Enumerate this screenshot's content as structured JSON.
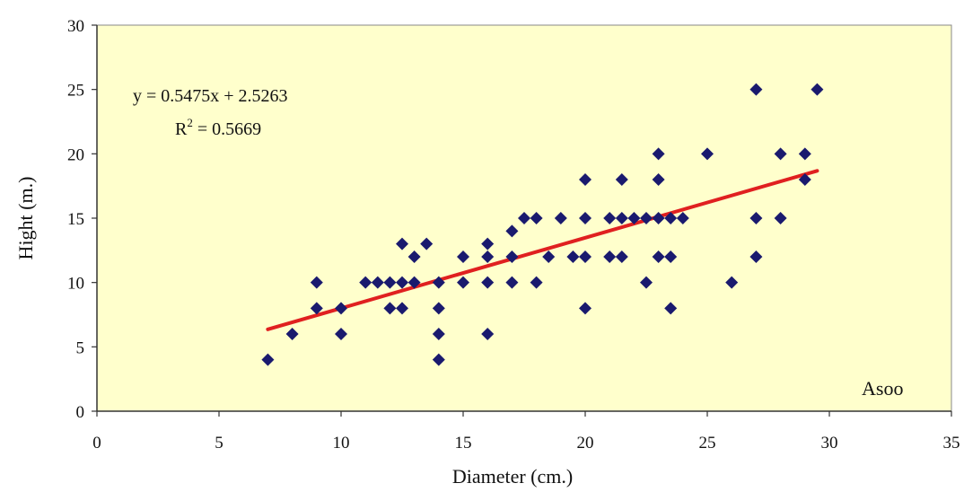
{
  "chart_data": {
    "type": "scatter",
    "title": "",
    "xlabel": "Diameter (cm.)",
    "ylabel": "Hight (m.)",
    "xlim": [
      0,
      35
    ],
    "ylim": [
      0,
      30
    ],
    "xticks": [
      0,
      5,
      10,
      15,
      20,
      25,
      30,
      35
    ],
    "yticks": [
      0,
      5,
      10,
      15,
      20,
      25,
      30
    ],
    "grid": false,
    "plot_background": "#ffffcc",
    "marker_color": "#1a1a6e",
    "trendline_color": "#e02020",
    "series": [
      {
        "points": [
          [
            7,
            4
          ],
          [
            8,
            6
          ],
          [
            9,
            8
          ],
          [
            9,
            10
          ],
          [
            10,
            6
          ],
          [
            10,
            8
          ],
          [
            11,
            10
          ],
          [
            11.5,
            10
          ],
          [
            12,
            8
          ],
          [
            12,
            10
          ],
          [
            12.5,
            8
          ],
          [
            12.5,
            10
          ],
          [
            12.5,
            13
          ],
          [
            13,
            10
          ],
          [
            13,
            12
          ],
          [
            13.5,
            13
          ],
          [
            14,
            4
          ],
          [
            14,
            6
          ],
          [
            14,
            8
          ],
          [
            14,
            10
          ],
          [
            15,
            10
          ],
          [
            15,
            12
          ],
          [
            16,
            6
          ],
          [
            16,
            10
          ],
          [
            16,
            12
          ],
          [
            16,
            13
          ],
          [
            17,
            10
          ],
          [
            17,
            12
          ],
          [
            17,
            14
          ],
          [
            17.5,
            15
          ],
          [
            18,
            10
          ],
          [
            18,
            15
          ],
          [
            18.5,
            12
          ],
          [
            19,
            15
          ],
          [
            19.5,
            12
          ],
          [
            20,
            8
          ],
          [
            20,
            12
          ],
          [
            20,
            15
          ],
          [
            20,
            18
          ],
          [
            21,
            12
          ],
          [
            21,
            15
          ],
          [
            21.5,
            12
          ],
          [
            21.5,
            15
          ],
          [
            21.5,
            18
          ],
          [
            22,
            15
          ],
          [
            22.5,
            10
          ],
          [
            22.5,
            15
          ],
          [
            23,
            12
          ],
          [
            23,
            15
          ],
          [
            23,
            18
          ],
          [
            23,
            20
          ],
          [
            23.5,
            8
          ],
          [
            23.5,
            12
          ],
          [
            23.5,
            15
          ],
          [
            24,
            15
          ],
          [
            25,
            20
          ],
          [
            26,
            10
          ],
          [
            27,
            12
          ],
          [
            27,
            15
          ],
          [
            27,
            25
          ],
          [
            28,
            15
          ],
          [
            28,
            20
          ],
          [
            29,
            18
          ],
          [
            29,
            20
          ],
          [
            29.5,
            25
          ]
        ]
      }
    ],
    "trendline": {
      "slope": 0.5475,
      "intercept": 2.5263,
      "x_range": [
        7,
        29.5
      ]
    },
    "annotations": {
      "equation": "y = 0.5475x + 2.5263",
      "r2_prefix": "R",
      "r2_sup": "2",
      "r2_value": " = 0.5669",
      "site_label": "Asoo"
    }
  }
}
